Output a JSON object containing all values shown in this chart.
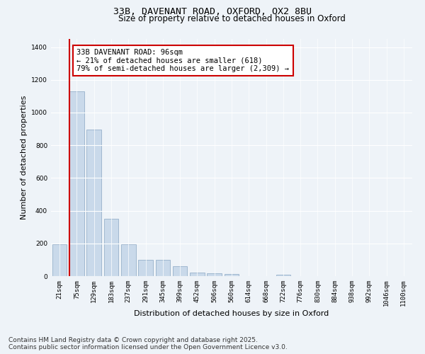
{
  "title_line1": "33B, DAVENANT ROAD, OXFORD, OX2 8BU",
  "title_line2": "Size of property relative to detached houses in Oxford",
  "xlabel": "Distribution of detached houses by size in Oxford",
  "ylabel": "Number of detached properties",
  "categories": [
    "21sqm",
    "75sqm",
    "129sqm",
    "183sqm",
    "237sqm",
    "291sqm",
    "345sqm",
    "399sqm",
    "452sqm",
    "506sqm",
    "560sqm",
    "614sqm",
    "668sqm",
    "722sqm",
    "776sqm",
    "830sqm",
    "884sqm",
    "938sqm",
    "992sqm",
    "1046sqm",
    "1100sqm"
  ],
  "values": [
    195,
    1130,
    895,
    350,
    195,
    100,
    100,
    60,
    22,
    18,
    13,
    0,
    0,
    8,
    0,
    0,
    0,
    0,
    0,
    0,
    0
  ],
  "bar_color": "#c9d9ea",
  "bar_edgecolor": "#a0b8d0",
  "vline_x_index": 0.575,
  "annotation_text": "33B DAVENANT ROAD: 96sqm\n← 21% of detached houses are smaller (618)\n79% of semi-detached houses are larger (2,309) →",
  "annotation_box_color": "#ffffff",
  "annotation_box_edgecolor": "#cc0000",
  "vline_color": "#cc0000",
  "ylim": [
    0,
    1450
  ],
  "yticks": [
    0,
    200,
    400,
    600,
    800,
    1000,
    1200,
    1400
  ],
  "bg_color": "#eef3f8",
  "footer_line1": "Contains HM Land Registry data © Crown copyright and database right 2025.",
  "footer_line2": "Contains public sector information licensed under the Open Government Licence v3.0.",
  "title_fontsize": 9.5,
  "subtitle_fontsize": 8.5,
  "label_fontsize": 8,
  "tick_fontsize": 6.5,
  "annotation_fontsize": 7.5,
  "footer_fontsize": 6.5
}
